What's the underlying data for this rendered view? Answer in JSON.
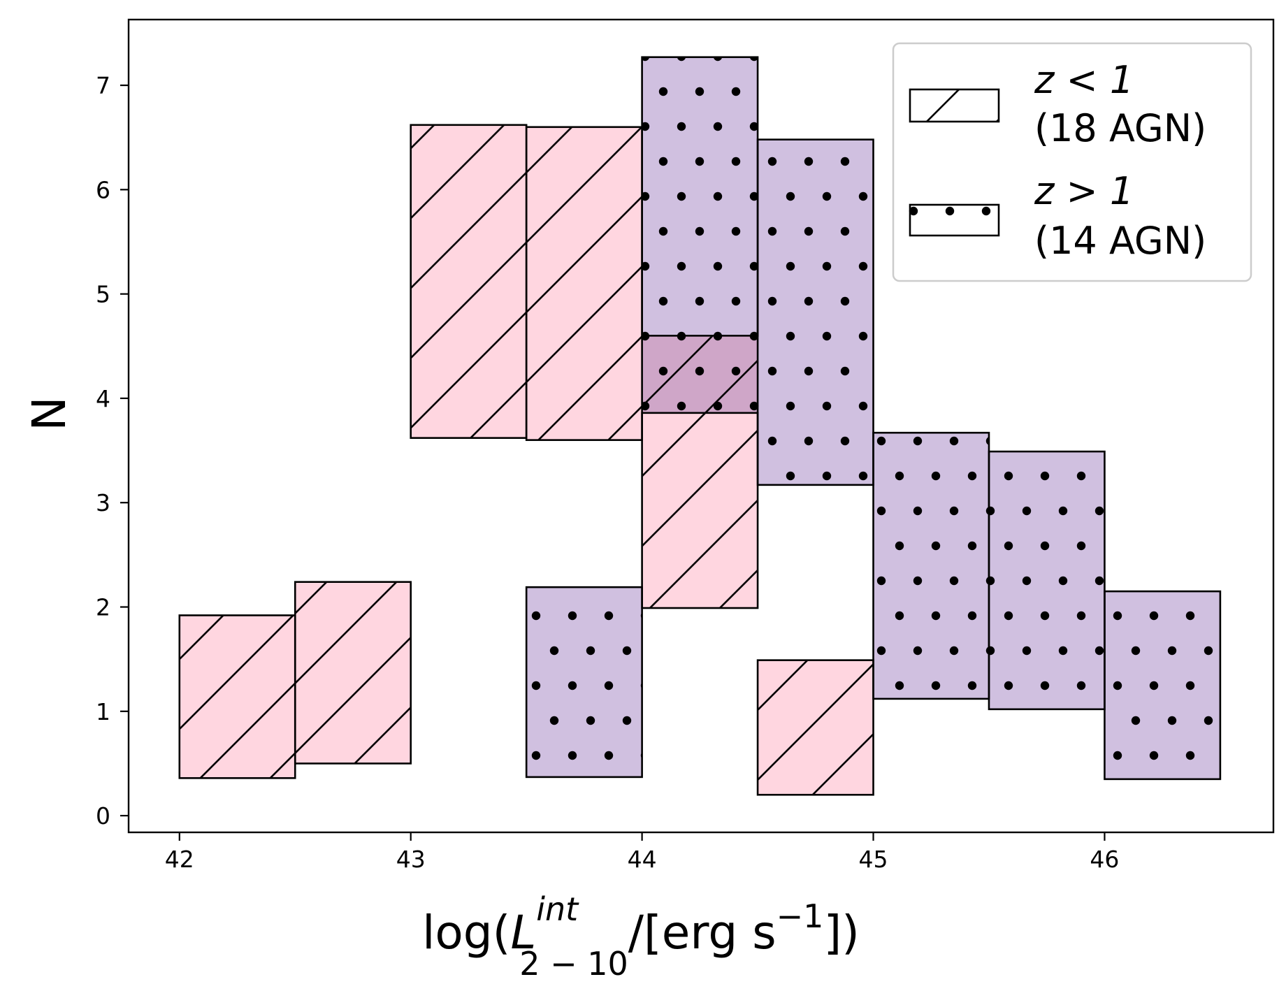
{
  "chart_data": {
    "type": "bar",
    "xlabel": {
      "prefix": "log(",
      "var": "L",
      "sup": "int",
      "sub": "2 − 10",
      "mid": "/[erg s",
      "exp": "−1",
      "suffix": "])"
    },
    "ylabel": "N",
    "xlim": [
      41.78,
      46.73
    ],
    "ylim": [
      -0.16,
      7.63
    ],
    "x_ticks": [
      "42",
      "43",
      "44",
      "45",
      "46"
    ],
    "y_ticks": [
      "0",
      "1",
      "2",
      "3",
      "4",
      "5",
      "6",
      "7"
    ],
    "series": [
      {
        "legend_math": "z < 1",
        "legend_count": "(18 AGN)",
        "pattern": "hatch",
        "color": "#ffd6e0",
        "bins": [
          {
            "x0": 42.0,
            "x1": 42.5,
            "lower": 0.36,
            "upper": 1.92
          },
          {
            "x0": 42.5,
            "x1": 43.0,
            "lower": 0.5,
            "upper": 2.24
          },
          {
            "x0": 43.0,
            "x1": 43.5,
            "lower": 3.62,
            "upper": 6.62
          },
          {
            "x0": 43.5,
            "x1": 44.0,
            "lower": 3.6,
            "upper": 6.6
          },
          {
            "x0": 44.0,
            "x1": 44.5,
            "lower": 1.99,
            "upper": 3.86
          },
          {
            "x0": 44.5,
            "x1": 45.0,
            "lower": 0.2,
            "upper": 1.49
          }
        ]
      },
      {
        "legend_math": "z > 1",
        "legend_count": "(14 AGN)",
        "pattern": "dots",
        "color": "#d0c0e0",
        "bins": [
          {
            "x0": 43.5,
            "x1": 44.0,
            "lower": 0.37,
            "upper": 2.19
          },
          {
            "x0": 44.0,
            "x1": 44.5,
            "lower": 4.6,
            "upper": 7.27
          },
          {
            "x0": 44.5,
            "x1": 45.0,
            "lower": 3.17,
            "upper": 6.48
          },
          {
            "x0": 45.0,
            "x1": 45.5,
            "lower": 1.12,
            "upper": 3.67
          },
          {
            "x0": 45.5,
            "x1": 46.0,
            "lower": 1.02,
            "upper": 3.49
          },
          {
            "x0": 46.0,
            "x1": 46.5,
            "lower": 0.35,
            "upper": 2.15
          }
        ]
      }
    ],
    "overlap_bins": [
      {
        "x0": 44.0,
        "x1": 44.5,
        "lower": 3.86,
        "upper": 4.6
      }
    ],
    "overlap_color": "#cfa6c8",
    "legend_position": "top-right",
    "grid": false
  }
}
